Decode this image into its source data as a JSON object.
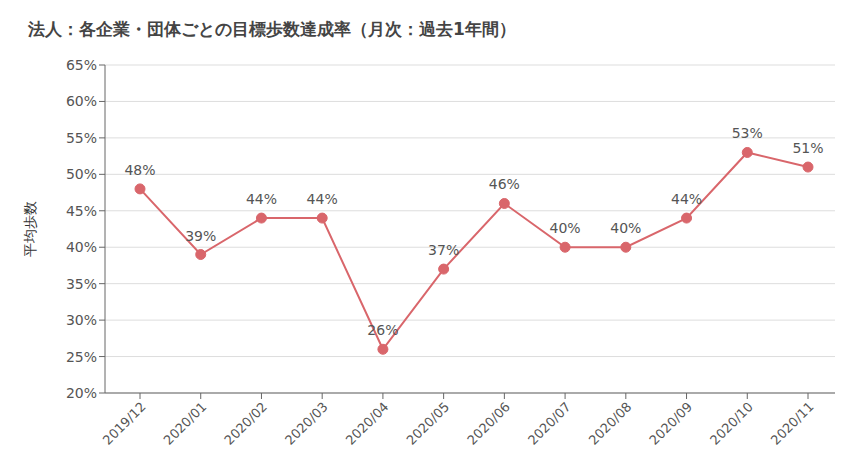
{
  "chart_data": {
    "type": "line",
    "title": "法人：各企業・団体ごとの目標歩数達成率（月次：過去1年間）",
    "y_label": "平均歩数",
    "categories": [
      "2019/12",
      "2020/01",
      "2020/02",
      "2020/03",
      "2020/04",
      "2020/05",
      "2020/06",
      "2020/07",
      "2020/08",
      "2020/09",
      "2020/10",
      "2020/11"
    ],
    "values": [
      48,
      39,
      44,
      44,
      26,
      37,
      46,
      40,
      40,
      44,
      53,
      51
    ],
    "value_labels": [
      "48%",
      "39%",
      "44%",
      "44%",
      "26%",
      "37%",
      "46%",
      "40%",
      "40%",
      "44%",
      "53%",
      "51%"
    ],
    "color": "#d9666b",
    "ylim": [
      20,
      65
    ],
    "yticks": [
      {
        "value": 20,
        "label": "20%"
      },
      {
        "value": 25,
        "label": "25%"
      },
      {
        "value": 30,
        "label": "30%"
      },
      {
        "value": 35,
        "label": "35%"
      },
      {
        "value": 40,
        "label": "40%"
      },
      {
        "value": 45,
        "label": "45%"
      },
      {
        "value": 50,
        "label": "50%"
      },
      {
        "value": 55,
        "label": "55%"
      },
      {
        "value": 60,
        "label": "60%"
      },
      {
        "value": 65,
        "label": "65%"
      }
    ],
    "grid": true,
    "data_labels": true,
    "marker": "circle"
  }
}
